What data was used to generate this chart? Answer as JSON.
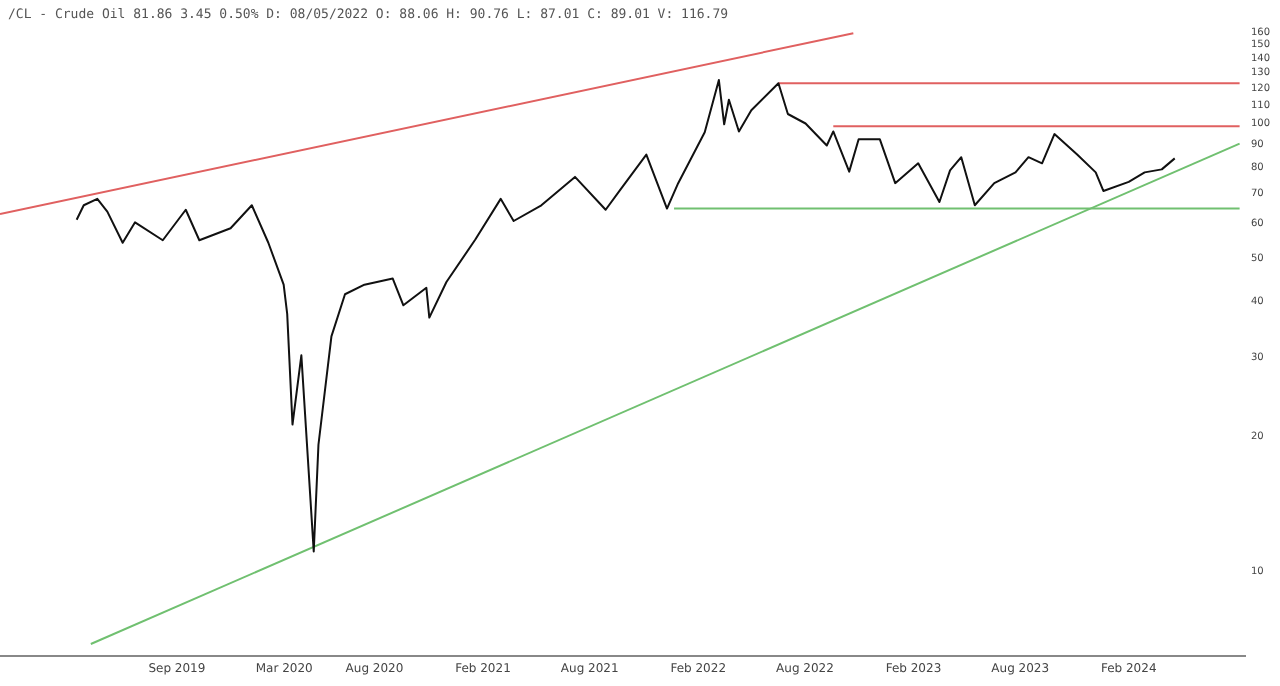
{
  "chart_data": {
    "type": "line",
    "title": "/CL - Crude Oil 81.86 3.45 0.50% D: 08/05/2022 O: 88.06 H: 90.76 L: 87.01 C: 89.01 V: 116.79",
    "series": [
      {
        "color": "#111111",
        "x": [
          "2019-03-15",
          "2019-03-27",
          "2019-04-19",
          "2019-05-06",
          "2019-06-01",
          "2019-06-22",
          "2019-08-08",
          "2019-09-16",
          "2019-10-09",
          "2019-12-01",
          "2020-01-06",
          "2020-02-03",
          "2020-02-29",
          "2020-03-06",
          "2020-03-15",
          "2020-03-30",
          "2020-04-20",
          "2020-04-28",
          "2020-05-20",
          "2020-06-12",
          "2020-07-15",
          "2020-09-01",
          "2020-09-19",
          "2020-10-28",
          "2020-11-02",
          "2020-12-01",
          "2021-01-19",
          "2021-03-03",
          "2021-03-25",
          "2021-05-11",
          "2021-07-07",
          "2021-08-28",
          "2021-09-22",
          "2021-11-05",
          "2021-12-10",
          "2021-12-29",
          "2022-02-12",
          "2022-03-08",
          "2022-03-17",
          "2022-03-25",
          "2022-04-11",
          "2022-05-02",
          "2022-06-17",
          "2022-07-03",
          "2022-08-02",
          "2022-09-07",
          "2022-09-18",
          "2022-10-15",
          "2022-10-31",
          "2022-12-06",
          "2023-01-01",
          "2023-02-09",
          "2023-03-17",
          "2023-04-04",
          "2023-04-23",
          "2023-05-16",
          "2023-06-18",
          "2023-07-24",
          "2023-08-15",
          "2023-09-07",
          "2023-09-28",
          "2023-11-06",
          "2023-12-07",
          "2023-12-20",
          "2024-02-01",
          "2024-02-28",
          "2024-03-28",
          "2024-04-19"
        ],
        "values": [
          61,
          65.7,
          67.9,
          63.6,
          54.2,
          60.2,
          54.9,
          64.2,
          54.9,
          58.4,
          65.7,
          54.2,
          43.7,
          37.6,
          21.3,
          30.4,
          11.1,
          19.2,
          33.5,
          41.6,
          43.7,
          45.1,
          39.3,
          43,
          36.9,
          44.3,
          55.1,
          67.9,
          60.6,
          65.7,
          76,
          64.2,
          71.2,
          85.2,
          64.6,
          73.6,
          95.6,
          125,
          99.6,
          113,
          96,
          107,
          123,
          105,
          100,
          89.3,
          96,
          78.1,
          92.2,
          92.2,
          73.6,
          81.5,
          66.8,
          78.6,
          84.1,
          65.7,
          73.6,
          77.8,
          84.1,
          81.5,
          94.7,
          85.2,
          77.8,
          70.7,
          74.1,
          77.8,
          79,
          83.6
        ]
      },
      {
        "type": "line",
        "color": "#e06060",
        "x": [
          "2018-11-05",
          "2022-10-22"
        ],
        "values": [
          62.8,
          159
        ]
      },
      {
        "type": "line",
        "color": "#e06060",
        "x": [
          "2022-06-17",
          "2024-08-07"
        ],
        "values": [
          123,
          123
        ]
      },
      {
        "type": "line",
        "color": "#e06060",
        "x": [
          "2022-09-18",
          "2024-08-07"
        ],
        "values": [
          98.6,
          98.6
        ]
      },
      {
        "type": "line",
        "color": "#70c070",
        "x": [
          "2021-12-22",
          "2024-08-07"
        ],
        "values": [
          64.6,
          64.6
        ]
      },
      {
        "type": "line",
        "color": "#70c070",
        "x": [
          "2019-04-08",
          "2024-08-07"
        ],
        "values": [
          6.9,
          90.2
        ]
      }
    ],
    "xlim": [
      "2018-11-05",
      "2024-08-16"
    ],
    "xticks": [
      {
        "value": "2019-09-01",
        "label": "Sep 2019"
      },
      {
        "value": "2020-03-01",
        "label": "Mar 2020"
      },
      {
        "value": "2020-08-01",
        "label": "Aug 2020"
      },
      {
        "value": "2021-02-01",
        "label": "Feb 2021"
      },
      {
        "value": "2021-08-01",
        "label": "Aug 2021"
      },
      {
        "value": "2022-02-01",
        "label": "Feb 2022"
      },
      {
        "value": "2022-08-01",
        "label": "Aug 2022"
      },
      {
        "value": "2023-02-01",
        "label": "Feb 2023"
      },
      {
        "value": "2023-08-01",
        "label": "Aug 2023"
      },
      {
        "value": "2024-02-01",
        "label": "Feb 2024"
      }
    ],
    "ylim": [
      6.5,
      160
    ],
    "yticks": [
      10,
      20,
      30,
      40,
      50,
      60,
      70,
      80,
      90,
      100,
      110,
      120,
      130,
      140,
      150,
      160
    ],
    "log": true,
    "legend": false,
    "grid": false
  }
}
